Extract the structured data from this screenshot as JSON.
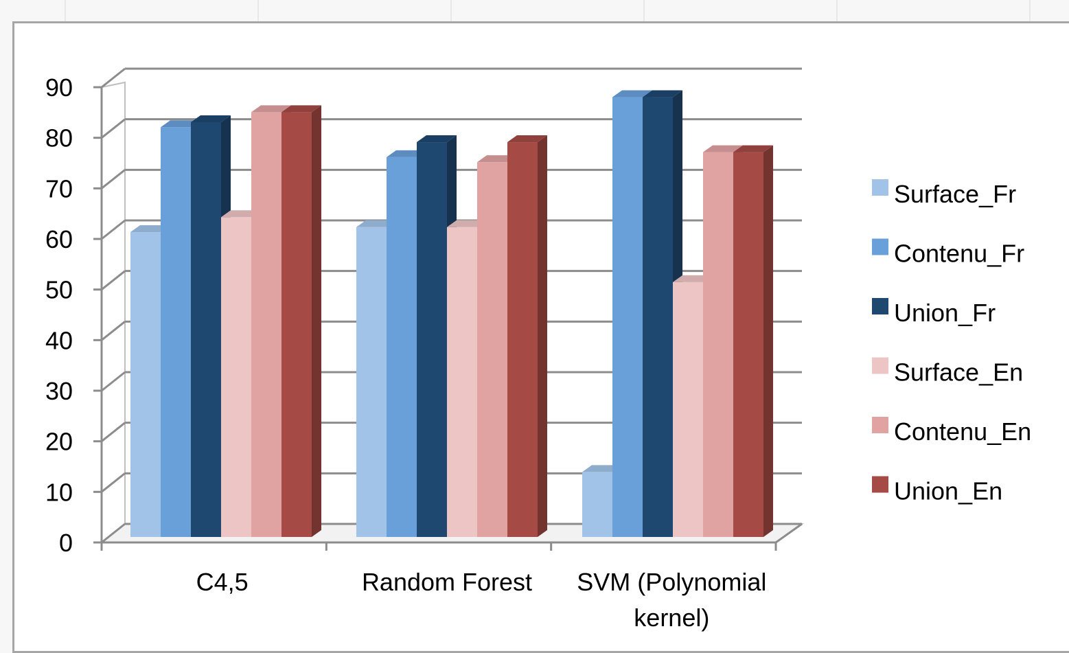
{
  "chart_data": {
    "type": "bar",
    "categories": [
      "C4,5",
      "Random Forest",
      "SVM (Polynomial kernel)"
    ],
    "category_label_lines": [
      [
        "C4,5"
      ],
      [
        "Random Forest"
      ],
      [
        "SVM (Polynomial",
        "kernel)"
      ]
    ],
    "series": [
      {
        "name": "Surface_Fr",
        "color": "#a1c3e8",
        "values": [
          61,
          62,
          13
        ]
      },
      {
        "name": "Contenu_Fr",
        "color": "#6aa0da",
        "values": [
          82,
          76,
          88
        ]
      },
      {
        "name": "Union_Fr",
        "color": "#1f4870",
        "values": [
          83,
          79,
          88
        ]
      },
      {
        "name": "Surface_En",
        "color": "#ecc5c4",
        "values": [
          64,
          62,
          51
        ]
      },
      {
        "name": "Contenu_En",
        "color": "#e0a3a2",
        "values": [
          85,
          75,
          77
        ]
      },
      {
        "name": "Union_En",
        "color": "#a54a45",
        "values": [
          85,
          79,
          77
        ]
      }
    ],
    "y_ticks": [
      "0",
      "10",
      "20",
      "30",
      "40",
      "50",
      "60",
      "70",
      "80",
      "90"
    ],
    "ylim": [
      0,
      90
    ],
    "grid": true,
    "legend_position": "right",
    "style": "3d-clustered-column"
  }
}
